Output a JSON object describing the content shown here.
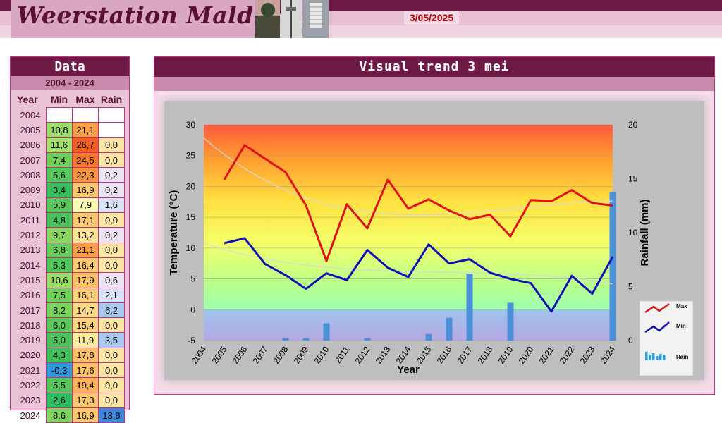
{
  "header": {
    "site_title": "Weerstation Malderen",
    "date": "3/05/2025"
  },
  "data_panel": {
    "title": "Data",
    "range": "2004 - 2024",
    "columns": [
      "Year",
      "Min",
      "Max",
      "Rain"
    ],
    "rows": [
      [
        "2004",
        "",
        "",
        ""
      ],
      [
        "2005",
        "10,8",
        "21,1",
        ""
      ],
      [
        "2006",
        "11,6",
        "26,7",
        "0,0"
      ],
      [
        "2007",
        "7,4",
        "24,5",
        "0,0"
      ],
      [
        "2008",
        "5,6",
        "22,3",
        "0,2"
      ],
      [
        "2009",
        "3,4",
        "16,9",
        "0,2"
      ],
      [
        "2010",
        "5,9",
        "7,9",
        "1,6"
      ],
      [
        "2011",
        "4,8",
        "17,1",
        "0,0"
      ],
      [
        "2012",
        "9,7",
        "13,2",
        "0,2"
      ],
      [
        "2013",
        "6,8",
        "21,1",
        "0,0"
      ],
      [
        "2014",
        "5,3",
        "16,4",
        "0,0"
      ],
      [
        "2015",
        "10,6",
        "17,9",
        "0,6"
      ],
      [
        "2016",
        "7,5",
        "16,1",
        "2,1"
      ],
      [
        "2017",
        "8,2",
        "14,7",
        "6,2"
      ],
      [
        "2018",
        "6,0",
        "15,4",
        "0,0"
      ],
      [
        "2019",
        "5,0",
        "11,9",
        "3,5"
      ],
      [
        "2020",
        "4,3",
        "17,8",
        "0,0"
      ],
      [
        "2021",
        "-0,3",
        "17,6",
        "0,0"
      ],
      [
        "2022",
        "5,5",
        "19,4",
        "0,0"
      ],
      [
        "2023",
        "2,6",
        "17,3",
        "0,0"
      ],
      [
        "2024",
        "8,6",
        "16,9",
        "13,8"
      ]
    ]
  },
  "chart_panel": {
    "title": "Visual trend 3 mei"
  },
  "chart_data": {
    "type": "line",
    "x": [
      "2004",
      "2005",
      "2006",
      "2007",
      "2008",
      "2009",
      "2010",
      "2011",
      "2012",
      "2013",
      "2014",
      "2015",
      "2016",
      "2017",
      "2018",
      "2019",
      "2020",
      "2021",
      "2022",
      "2023",
      "2024"
    ],
    "series": [
      {
        "name": "Max",
        "axis": "left",
        "color": "#e01010",
        "values": [
          null,
          21.1,
          26.7,
          24.5,
          22.3,
          16.9,
          7.9,
          17.1,
          13.2,
          21.1,
          16.4,
          17.9,
          16.1,
          14.7,
          15.4,
          11.9,
          17.8,
          17.6,
          19.4,
          17.3,
          16.9
        ]
      },
      {
        "name": "Min",
        "axis": "left",
        "color": "#1010b8",
        "values": [
          null,
          10.8,
          11.6,
          7.4,
          5.6,
          3.4,
          5.9,
          4.8,
          9.7,
          6.8,
          5.3,
          10.6,
          7.5,
          8.2,
          6.0,
          5.0,
          4.3,
          -0.3,
          5.5,
          2.6,
          8.6
        ]
      },
      {
        "name": "Rain",
        "type": "bar",
        "axis": "right",
        "color": "#4a8fd8",
        "values": [
          null,
          null,
          0.0,
          0.0,
          0.2,
          0.2,
          1.6,
          0.0,
          0.2,
          0.0,
          0.0,
          0.6,
          2.1,
          6.2,
          0.0,
          3.5,
          0.0,
          0.0,
          0.0,
          0.0,
          13.8
        ]
      }
    ],
    "xlabel": "Year",
    "ylabel": "Temperature (°C)",
    "y2label": "Rainfall (mm)",
    "ylim": [
      -5,
      30
    ],
    "yticks": [
      -5,
      0,
      5,
      10,
      15,
      20,
      25,
      30
    ],
    "y2lim": [
      0,
      20
    ],
    "y2ticks": [
      0,
      5,
      10,
      15,
      20
    ],
    "legend_position": "right",
    "grid": true
  }
}
